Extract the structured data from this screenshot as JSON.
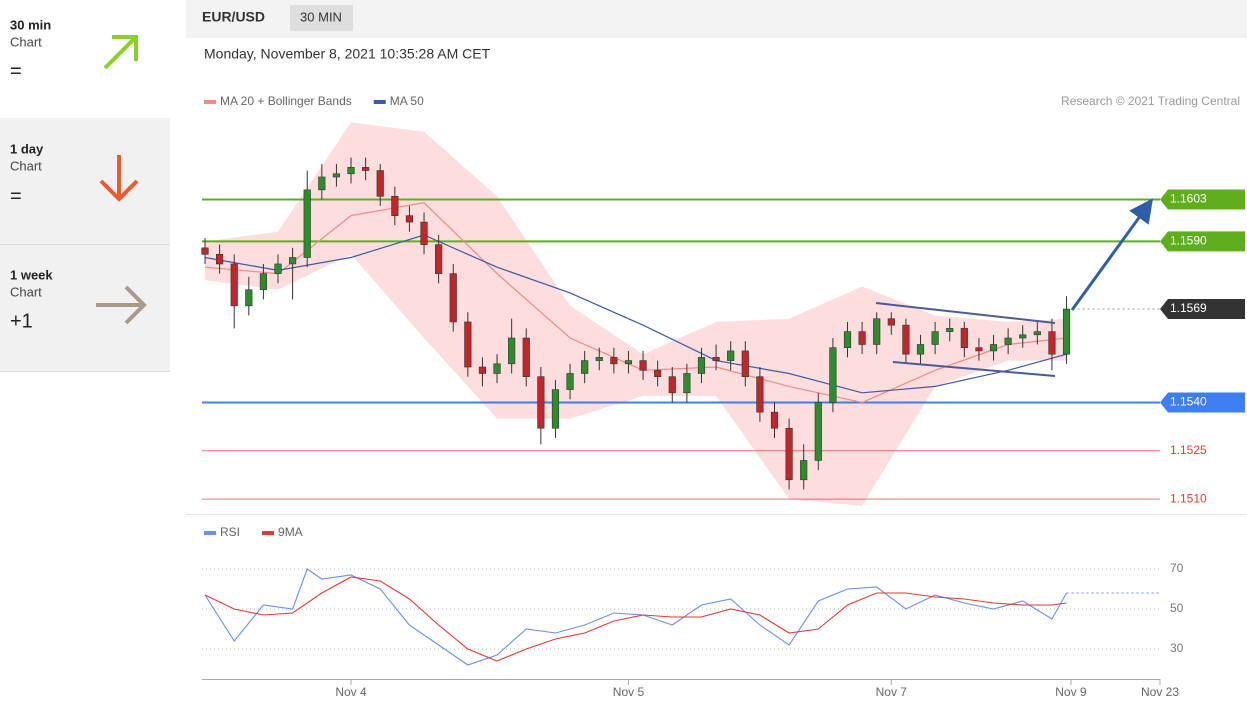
{
  "sidebar": [
    {
      "period": "30 min",
      "label": "Chart",
      "signal": "="
    },
    {
      "period": "1 day",
      "label": "Chart",
      "signal": "="
    },
    {
      "period": "1 week",
      "label": "Chart",
      "signal": "+1"
    }
  ],
  "header": {
    "symbol": "EUR/USD",
    "timeframe": "30 MIN",
    "timestamp": "Monday, November 8, 2021 10:35:28 AM CET",
    "copyright": "Research © 2021 Trading Central"
  },
  "chart_data": [
    {
      "type": "candlestick",
      "x": [
        0,
        1,
        2,
        3,
        4,
        5,
        6,
        7,
        8,
        9,
        10,
        11,
        12,
        13,
        14,
        15,
        16,
        17,
        18,
        19,
        20,
        21,
        22,
        23,
        24,
        25,
        26,
        27,
        28,
        29,
        30,
        31,
        32,
        33,
        34,
        35,
        36,
        37,
        38,
        39,
        40,
        41,
        42,
        43,
        44,
        45,
        46,
        47,
        48,
        49,
        50,
        51,
        52,
        53,
        54,
        55,
        56,
        57,
        58,
        59
      ],
      "open": [
        1.1588,
        1.1586,
        1.1583,
        1.157,
        1.1575,
        1.158,
        1.1583,
        1.1585,
        1.1606,
        1.161,
        1.1611,
        1.1613,
        1.1612,
        1.1604,
        1.1598,
        1.1596,
        1.1589,
        1.158,
        1.1565,
        1.1551,
        1.1549,
        1.1552,
        1.156,
        1.1548,
        1.1532,
        1.1544,
        1.1549,
        1.1553,
        1.1554,
        1.1552,
        1.1553,
        1.155,
        1.1548,
        1.1543,
        1.1549,
        1.1554,
        1.1553,
        1.1556,
        1.1548,
        1.1537,
        1.1532,
        1.1516,
        1.1522,
        1.154,
        1.1557,
        1.1562,
        1.1558,
        1.1566,
        1.1564,
        1.1555,
        1.1558,
        1.1562,
        1.1563,
        1.1557,
        1.1556,
        1.1558,
        1.156,
        1.1561,
        1.1562,
        1.1555
      ],
      "high": [
        1.1591,
        1.1589,
        1.1586,
        1.1579,
        1.1583,
        1.1586,
        1.1588,
        1.1612,
        1.1614,
        1.1614,
        1.1616,
        1.1616,
        1.1614,
        1.1607,
        1.1601,
        1.1599,
        1.1592,
        1.1583,
        1.1568,
        1.1554,
        1.1555,
        1.1566,
        1.1563,
        1.1551,
        1.1547,
        1.1552,
        1.1556,
        1.1557,
        1.1557,
        1.1556,
        1.1556,
        1.1553,
        1.1551,
        1.1552,
        1.1557,
        1.1558,
        1.1559,
        1.1559,
        1.1551,
        1.154,
        1.1535,
        1.1527,
        1.1543,
        1.156,
        1.1565,
        1.1565,
        1.1568,
        1.1568,
        1.1566,
        1.1561,
        1.1565,
        1.1566,
        1.1565,
        1.156,
        1.1561,
        1.1563,
        1.1564,
        1.1565,
        1.1566,
        1.1573
      ],
      "low": [
        1.1583,
        1.158,
        1.1563,
        1.1567,
        1.1572,
        1.1577,
        1.1572,
        1.1582,
        1.1603,
        1.1607,
        1.1608,
        1.1609,
        1.1601,
        1.1595,
        1.1593,
        1.1586,
        1.1577,
        1.1562,
        1.1548,
        1.1545,
        1.1546,
        1.1549,
        1.1545,
        1.1527,
        1.1529,
        1.1541,
        1.1546,
        1.155,
        1.1549,
        1.1549,
        1.1547,
        1.1545,
        1.154,
        1.154,
        1.1546,
        1.155,
        1.155,
        1.1545,
        1.1534,
        1.1529,
        1.1513,
        1.1513,
        1.1519,
        1.1537,
        1.1554,
        1.1555,
        1.1555,
        1.1561,
        1.1552,
        1.1552,
        1.1555,
        1.1559,
        1.1554,
        1.1553,
        1.1553,
        1.1555,
        1.1557,
        1.1558,
        1.155,
        1.1552
      ],
      "close": [
        1.1586,
        1.1583,
        1.157,
        1.1575,
        1.158,
        1.1583,
        1.1585,
        1.1606,
        1.161,
        1.1611,
        1.1613,
        1.1612,
        1.1604,
        1.1598,
        1.1596,
        1.1589,
        1.158,
        1.1565,
        1.1551,
        1.1549,
        1.1552,
        1.156,
        1.1548,
        1.1532,
        1.1544,
        1.1549,
        1.1553,
        1.1554,
        1.1552,
        1.1553,
        1.155,
        1.1548,
        1.1543,
        1.1549,
        1.1554,
        1.1553,
        1.1556,
        1.1548,
        1.1537,
        1.1532,
        1.1516,
        1.1522,
        1.154,
        1.1557,
        1.1562,
        1.1558,
        1.1566,
        1.1564,
        1.1555,
        1.1558,
        1.1562,
        1.1563,
        1.1557,
        1.1556,
        1.1558,
        1.156,
        1.1561,
        1.1562,
        1.1555,
        1.1569
      ],
      "up_color": "#2e8b2e",
      "down_color": "#c0262a",
      "band": {
        "x": [
          0,
          5,
          10,
          15,
          20,
          25,
          30,
          35,
          40,
          45,
          50,
          55,
          59
        ],
        "upper": [
          1.159,
          1.1593,
          1.1627,
          1.1624,
          1.1604,
          1.157,
          1.1555,
          1.1565,
          1.1566,
          1.1576,
          1.1567,
          1.1565,
          1.1566
        ],
        "lower": [
          1.1578,
          1.1575,
          1.1586,
          1.156,
          1.1535,
          1.1535,
          1.1542,
          1.1542,
          1.151,
          1.1508,
          1.1545,
          1.1553,
          1.1553
        ],
        "color": "#fdd5d5"
      },
      "series": [
        {
          "name": "MA 20 + Bollinger Bands",
          "color": "#f08a8a",
          "x": [
            0,
            5,
            10,
            15,
            20,
            25,
            30,
            35,
            40,
            45,
            50,
            55,
            59
          ],
          "values": [
            1.1582,
            1.158,
            1.1598,
            1.1602,
            1.158,
            1.156,
            1.155,
            1.1551,
            1.1545,
            1.154,
            1.155,
            1.1558,
            1.156
          ]
        },
        {
          "name": "MA 50",
          "color": "#3b5ba5",
          "x": [
            0,
            5,
            10,
            15,
            20,
            25,
            30,
            35,
            40,
            45,
            50,
            55,
            59
          ],
          "values": [
            1.1585,
            1.1581,
            1.1585,
            1.1592,
            1.1582,
            1.1574,
            1.1564,
            1.1553,
            1.1549,
            1.1543,
            1.1545,
            1.155,
            1.1555
          ]
        }
      ],
      "levels": [
        {
          "value": 1.1603,
          "label": "1.1603",
          "color": "#5fae1d",
          "line": "solid",
          "boxed": true
        },
        {
          "value": 1.159,
          "label": "1.1590",
          "color": "#5fae1d",
          "line": "solid",
          "boxed": true
        },
        {
          "value": 1.1569,
          "label": "1.1569",
          "color": "#333333",
          "line": "dotted",
          "boxed": true
        },
        {
          "value": 1.154,
          "label": "1.1540",
          "color": "#3d7ef0",
          "line": "solid",
          "boxed": true
        },
        {
          "value": 1.1525,
          "label": "1.1525",
          "color": "#e53935",
          "line": "thin",
          "boxed": false
        },
        {
          "value": 1.151,
          "label": "1.1510",
          "color": "#e53935",
          "line": "thin",
          "boxed": false
        }
      ],
      "xlim": [
        0,
        65.4
      ],
      "ylim": [
        1.1506,
        1.1637
      ]
    },
    {
      "type": "line",
      "series": [
        {
          "name": "RSI",
          "color": "#6b8ef0",
          "x": [
            0,
            2,
            4,
            6,
            7,
            8,
            10,
            12,
            14,
            16,
            18,
            20,
            22,
            24,
            26,
            28,
            30,
            32,
            34,
            36,
            38,
            40,
            42,
            44,
            46,
            48,
            50,
            52,
            54,
            56,
            58,
            59
          ],
          "values": [
            57,
            34,
            52,
            50,
            70,
            65,
            67,
            60,
            42,
            32,
            22,
            27,
            40,
            38,
            42,
            48,
            47,
            42,
            52,
            55,
            42,
            32,
            54,
            60,
            61,
            50,
            57,
            53,
            50,
            54,
            45,
            58
          ]
        },
        {
          "name": "9MA",
          "color": "#e53935",
          "x": [
            0,
            2,
            4,
            6,
            8,
            10,
            12,
            14,
            16,
            18,
            20,
            22,
            24,
            26,
            28,
            30,
            32,
            34,
            36,
            38,
            40,
            42,
            44,
            46,
            48,
            50,
            52,
            54,
            56,
            58,
            59
          ],
          "values": [
            57,
            50,
            47,
            48,
            58,
            66,
            64,
            55,
            42,
            30,
            24,
            30,
            35,
            38,
            44,
            47,
            46,
            46,
            50,
            47,
            38,
            40,
            52,
            58,
            58,
            56,
            55,
            53,
            52,
            52,
            53
          ]
        }
      ],
      "xlim": [
        0,
        65.4
      ],
      "ylim": [
        15,
        82
      ],
      "yticks": [
        30,
        50,
        70
      ],
      "grid": true,
      "xticks": [
        {
          "value": 10,
          "label": "Nov 4"
        },
        {
          "value": 29,
          "label": "Nov 5"
        },
        {
          "value": 47,
          "label": "Nov 7"
        },
        {
          "value": 59.3,
          "label": "Nov 9"
        },
        {
          "value": 65.4,
          "label": "Nov 23"
        }
      ]
    }
  ]
}
